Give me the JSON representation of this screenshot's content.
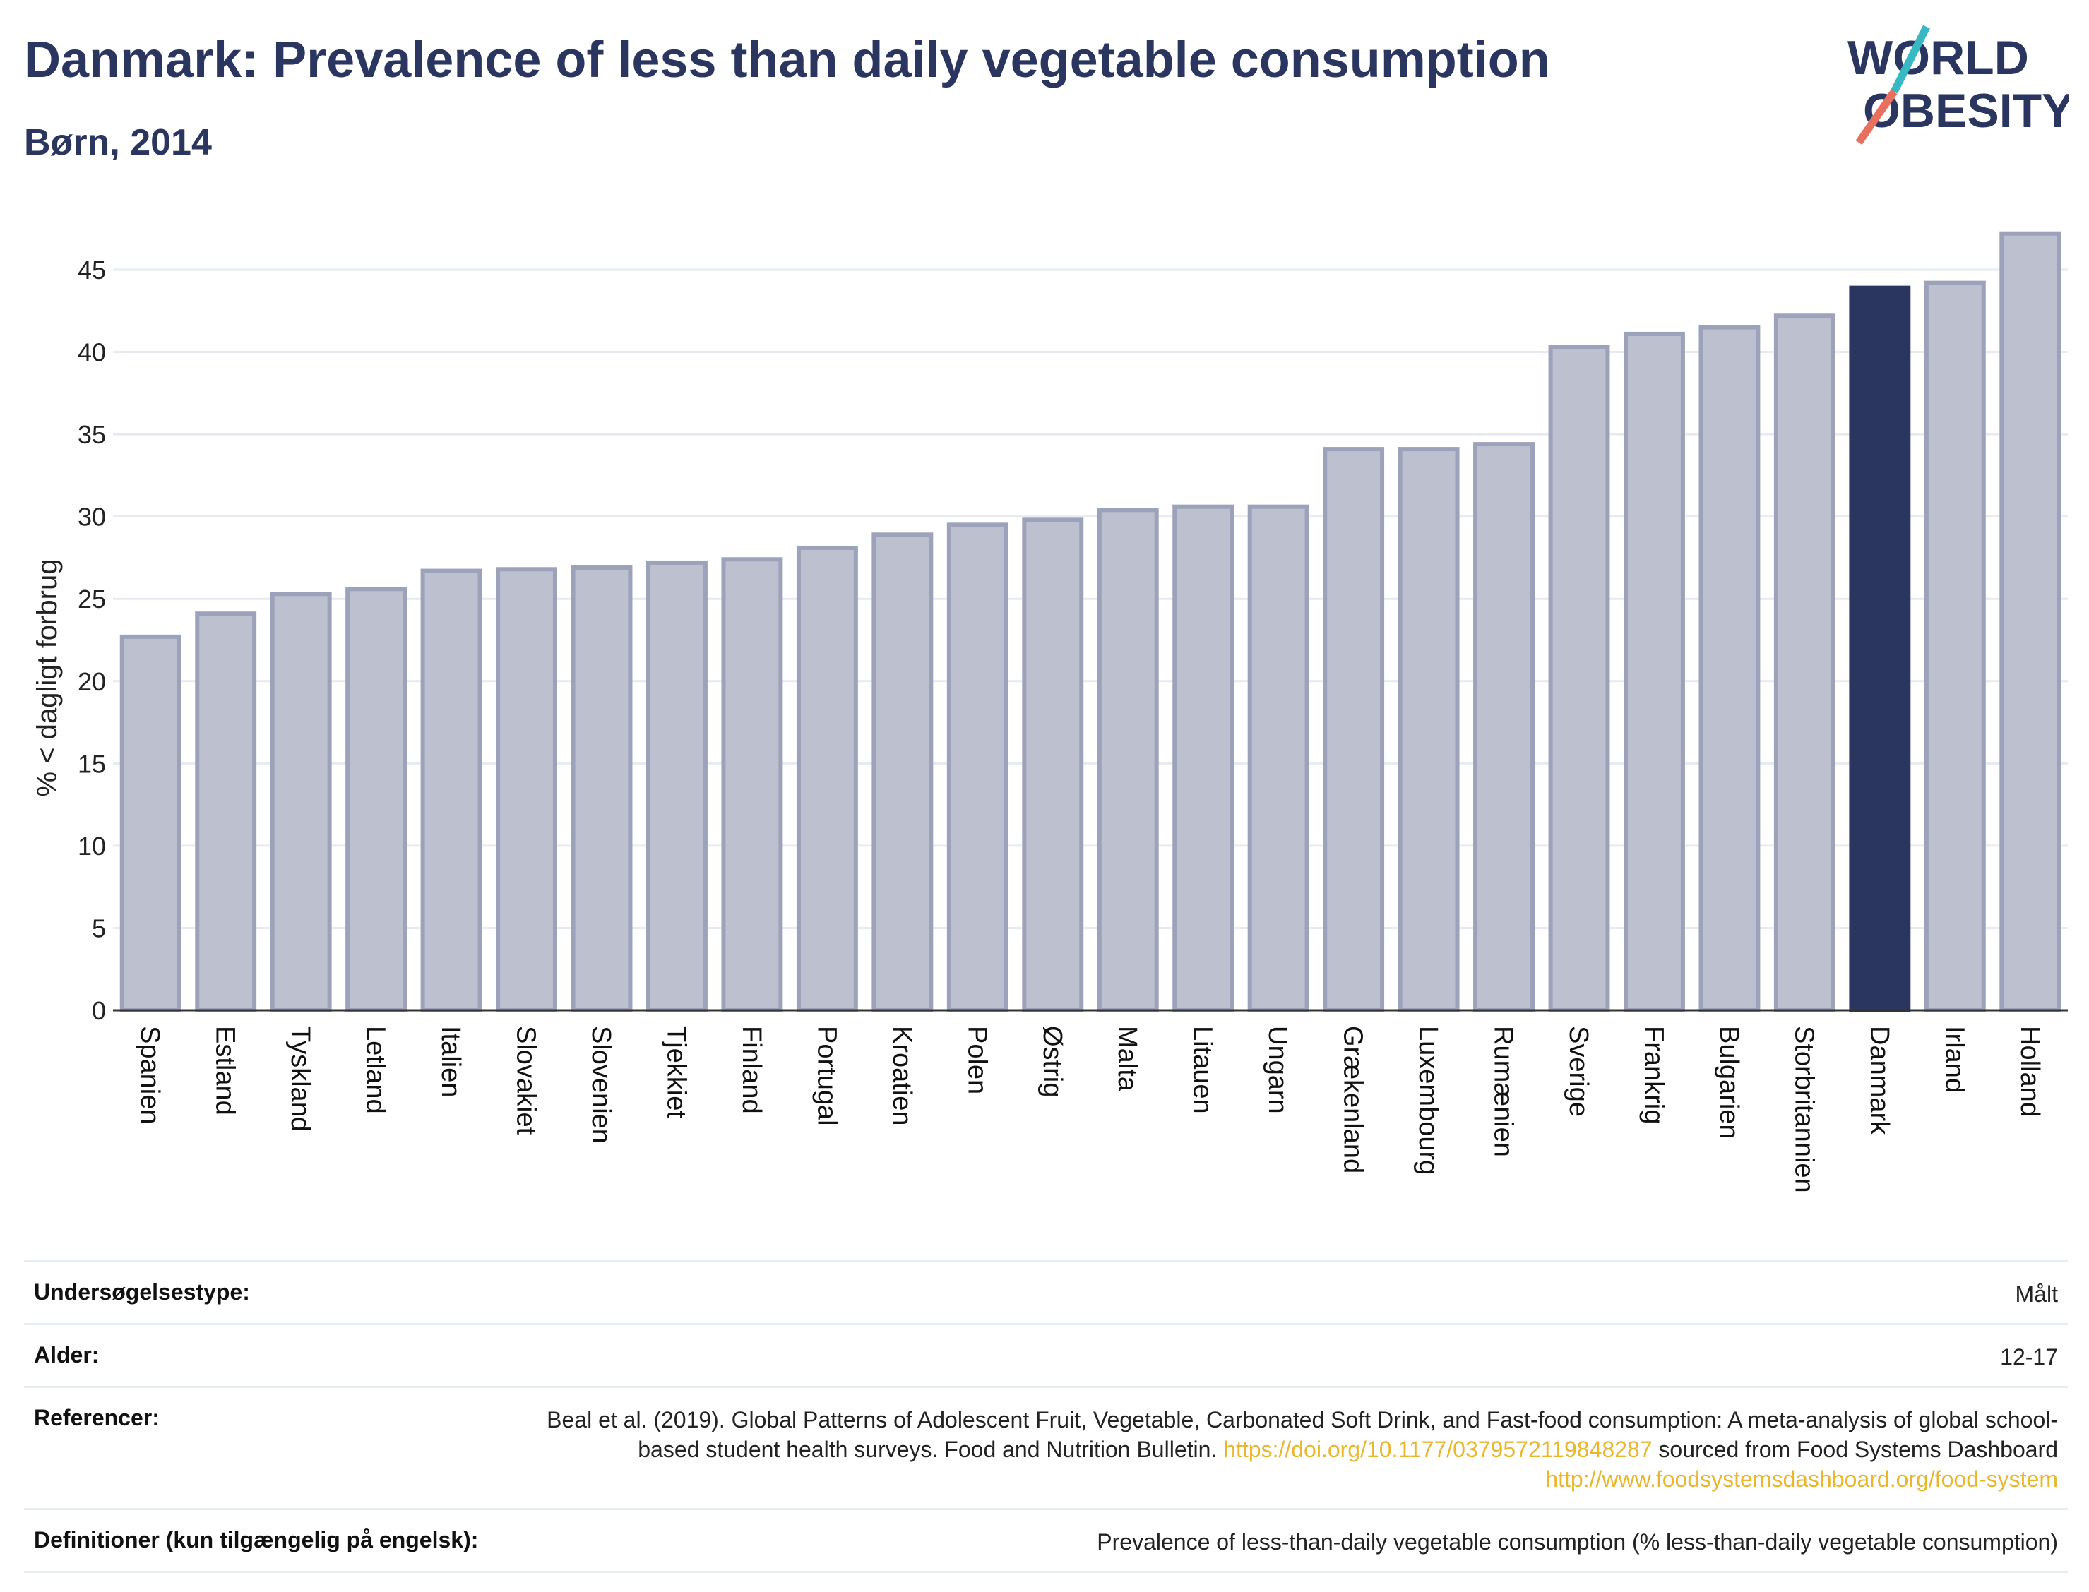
{
  "header": {
    "title": "Danmark: Prevalence of less than daily vegetable consumption",
    "subtitle": "Børn, 2014",
    "logo_text": "WORLD OBESITY"
  },
  "chart_data": {
    "type": "bar",
    "ylabel": "% < dagligt forbrug",
    "xlabel": "",
    "ylim": [
      0,
      48
    ],
    "yticks": [
      0,
      5,
      10,
      15,
      20,
      25,
      30,
      35,
      40,
      45
    ],
    "grid": true,
    "categories": [
      "Spanien",
      "Estland",
      "Tyskland",
      "Letland",
      "Italien",
      "Slovakiet",
      "Slovenien",
      "Tjekkiet",
      "Finland",
      "Portugal",
      "Kroatien",
      "Polen",
      "Østrig",
      "Malta",
      "Litauen",
      "Ungarn",
      "Grækenland",
      "Luxembourg",
      "Rumænien",
      "Sverige",
      "Frankrig",
      "Bulgarien",
      "Storbritannien",
      "Danmark",
      "Irland",
      "Holland"
    ],
    "values": [
      22.7,
      24.1,
      25.3,
      25.6,
      26.7,
      26.8,
      26.9,
      27.2,
      27.4,
      28.1,
      28.9,
      29.5,
      29.8,
      30.4,
      30.6,
      30.6,
      34.1,
      34.1,
      34.4,
      40.3,
      41.1,
      41.5,
      42.2,
      43.9,
      44.2,
      47.2
    ],
    "highlight": "Danmark",
    "colors": {
      "default_fill": "#bcc0cf",
      "default_stroke": "#9ca2b9",
      "highlight": "#2a3560"
    }
  },
  "info": {
    "survey_type": {
      "label": "Undersøgelsestype:",
      "value": "Målt"
    },
    "age": {
      "label": "Alder:",
      "value": "12-17"
    },
    "references": {
      "label": "Referencer:",
      "text1": "Beal et al. (2019). Global Patterns of Adolescent Fruit, Vegetable, Carbonated Soft Drink, and Fast-food consumption: A meta-analysis of global school-based student health surveys. Food and Nutrition Bulletin.",
      "link1": "https://doi.org/10.1177/0379572119848287",
      "text2": "sourced from Food Systems Dashboard",
      "link2": "http://www.foodsystemsdashboard.org/food-system"
    },
    "definitions": {
      "label": "Definitioner (kun tilgængelig på engelsk):",
      "value": "Prevalence of less-than-daily vegetable consumption (% less-than-daily vegetable consumption)"
    }
  }
}
